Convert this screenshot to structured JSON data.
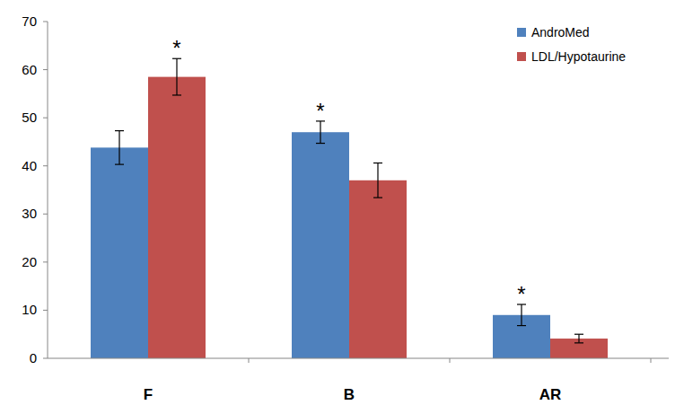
{
  "chart_data": {
    "type": "bar",
    "categories": [
      "F",
      "B",
      "AR"
    ],
    "series": [
      {
        "name": "AndroMed",
        "color": "#4f81bd",
        "values": [
          43.8,
          47,
          9
        ],
        "errors": [
          3.5,
          2.3,
          2.2
        ]
      },
      {
        "name": "LDL/Hypotaurine",
        "color": "#c0504d",
        "values": [
          58.5,
          37,
          4.1
        ],
        "errors": [
          3.8,
          3.6,
          0.9
        ]
      }
    ],
    "annotations": [
      {
        "text": "*",
        "series": 1,
        "category": 0
      },
      {
        "text": "*",
        "series": 0,
        "category": 1
      },
      {
        "text": "*",
        "series": 0,
        "category": 2
      }
    ],
    "ylim": [
      0,
      70
    ],
    "yticks": [
      0,
      10,
      20,
      30,
      40,
      50,
      60,
      70
    ],
    "grid": false,
    "legend": "top-right"
  }
}
